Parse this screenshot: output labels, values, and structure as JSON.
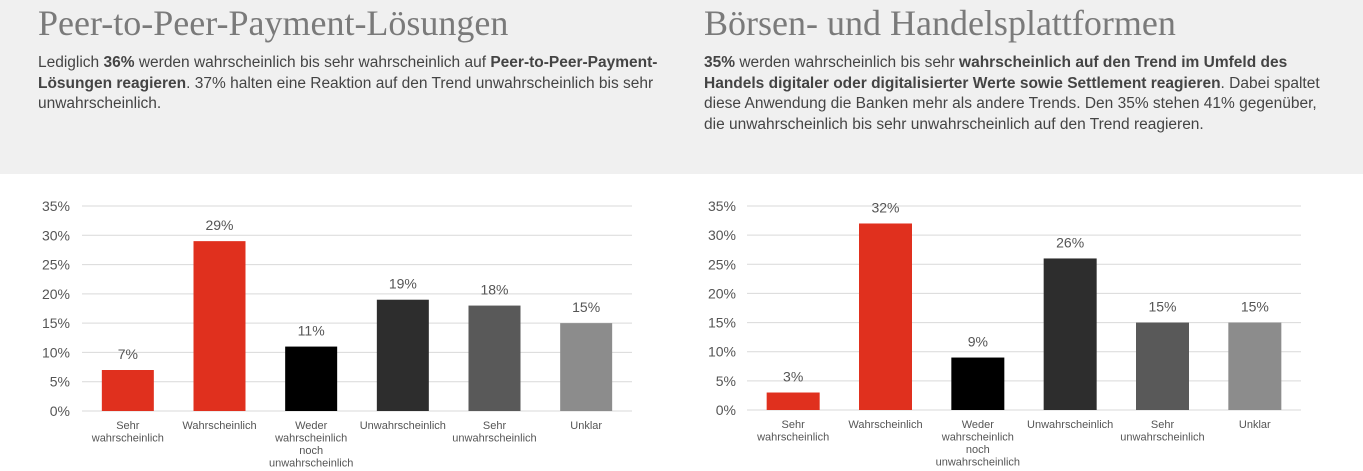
{
  "panels": [
    {
      "title": "Peer-to-Peer-Payment-Lösungen",
      "description": [
        {
          "t": "Lediglich ",
          "b": false
        },
        {
          "t": "36%",
          "b": true
        },
        {
          "t": " werden wahrscheinlich bis sehr wahrscheinlich auf ",
          "b": false
        },
        {
          "t": "Peer-to-Peer-Payment-Lösungen reagieren",
          "b": true
        },
        {
          "t": ". 37% halten eine Reaktion auf den Trend unwahrscheinlich bis sehr unwahrscheinlich.",
          "b": false
        }
      ]
    },
    {
      "title": "Börsen- und Handelsplattformen",
      "description": [
        {
          "t": "35%",
          "b": true
        },
        {
          "t": " werden wahrscheinlich bis sehr ",
          "b": false
        },
        {
          "t": "wahrscheinlich auf den Trend im Umfeld des Handels digitaler oder digitalisierter Werte sowie Settlement reagieren",
          "b": true
        },
        {
          "t": ". Dabei spaltet diese Anwendung die Banken mehr als andere Trends. Den 35% stehen 41% gegenüber, die unwahrscheinlich bis sehr unwahrscheinlich auf den Trend reagieren.",
          "b": false
        }
      ]
    }
  ],
  "chart_data": [
    {
      "type": "bar",
      "categories": [
        [
          "Sehr",
          "wahrscheinlich"
        ],
        [
          "Wahrscheinlich"
        ],
        [
          "Weder",
          "wahrscheinlich",
          "noch",
          "unwahrscheinlich"
        ],
        [
          "Unwahrscheinlich"
        ],
        [
          "Sehr",
          "unwahrscheinlich"
        ],
        [
          "Unklar"
        ]
      ],
      "values": [
        7,
        29,
        11,
        19,
        18,
        15
      ],
      "data_labels": [
        "7%",
        "29%",
        "11%",
        "19%",
        "18%",
        "15%"
      ],
      "colors": [
        "#e0301e",
        "#e0301e",
        "#000000",
        "#2d2d2d",
        "#595959",
        "#8c8c8c"
      ],
      "ylim": [
        0,
        35
      ],
      "yticks": [
        0,
        5,
        10,
        15,
        20,
        25,
        30,
        35
      ],
      "ytick_labels": [
        "0%",
        "5%",
        "10%",
        "15%",
        "20%",
        "25%",
        "30%",
        "35%"
      ],
      "grid": true,
      "legend": "none"
    },
    {
      "type": "bar",
      "categories": [
        [
          "Sehr",
          "wahrscheinlich"
        ],
        [
          "Wahrscheinlich"
        ],
        [
          "Weder",
          "wahrscheinlich",
          "noch",
          "unwahrscheinlich"
        ],
        [
          "Unwahrscheinlich"
        ],
        [
          "Sehr",
          "unwahrscheinlich"
        ],
        [
          "Unklar"
        ]
      ],
      "values": [
        3,
        32,
        9,
        26,
        15,
        15
      ],
      "data_labels": [
        "3%",
        "32%",
        "9%",
        "26%",
        "15%",
        "15%"
      ],
      "colors": [
        "#e0301e",
        "#e0301e",
        "#000000",
        "#2d2d2d",
        "#595959",
        "#8c8c8c"
      ],
      "ylim": [
        0,
        35
      ],
      "yticks": [
        0,
        5,
        10,
        15,
        20,
        25,
        30,
        35
      ],
      "ytick_labels": [
        "0%",
        "5%",
        "10%",
        "15%",
        "20%",
        "25%",
        "30%",
        "35%"
      ],
      "grid": true,
      "legend": "none"
    }
  ]
}
